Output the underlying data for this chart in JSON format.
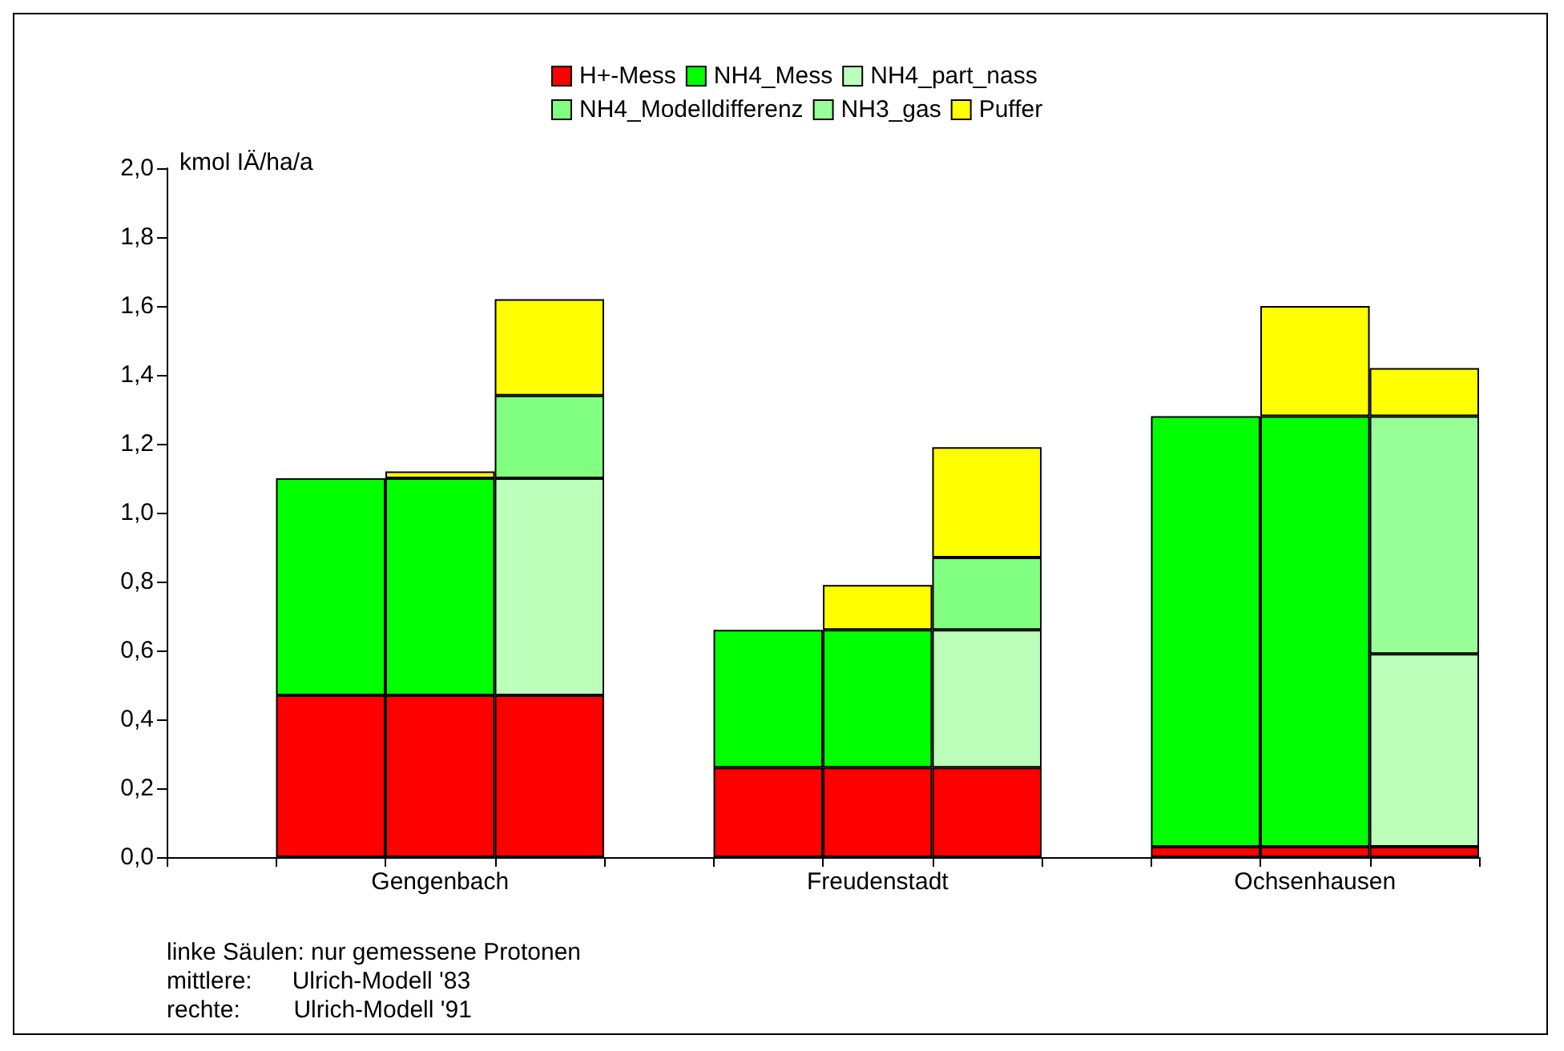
{
  "chart_data": {
    "type": "bar",
    "stacked": true,
    "ylabel": "kmol IÄ/ha/a",
    "categories": [
      null,
      null,
      "Gengenbach",
      null,
      null,
      null,
      "Freudenstadt",
      null,
      null,
      null,
      "Ochsenhausen",
      null
    ],
    "series": [
      {
        "name": "H+-Mess",
        "color": "#ff0000",
        "values": [
          null,
          0.47,
          0.47,
          0.47,
          null,
          0.26,
          0.26,
          0.26,
          null,
          0.03,
          0.03,
          0.03
        ]
      },
      {
        "name": "NH4_Mess",
        "color": "#00ff00",
        "values": [
          null,
          0.63,
          0.63,
          null,
          null,
          0.4,
          0.4,
          null,
          null,
          1.25,
          1.25,
          null
        ]
      },
      {
        "name": "NH4_part_nass",
        "color": "#bbffbb",
        "values": [
          null,
          null,
          null,
          0.63,
          null,
          null,
          null,
          0.4,
          null,
          null,
          null,
          0.56
        ]
      },
      {
        "name": "NH4_Modelldifferenz",
        "color": "#80ff80",
        "values": [
          null,
          null,
          null,
          0.24,
          null,
          null,
          null,
          0.21,
          null,
          null,
          null,
          null
        ]
      },
      {
        "name": "NH3_gas",
        "color": "#99ff99",
        "values": [
          null,
          null,
          null,
          null,
          null,
          null,
          null,
          null,
          null,
          null,
          null,
          0.69
        ]
      },
      {
        "name": "Puffer",
        "color": "#ffff00",
        "values": [
          null,
          null,
          0.02,
          0.28,
          null,
          null,
          0.13,
          0.32,
          null,
          null,
          0.32,
          0.14
        ]
      }
    ],
    "ylim": [
      0,
      2
    ],
    "yticks": [
      {
        "value": 0,
        "label": "0,0"
      },
      {
        "value": 0.2,
        "label": "0,2"
      },
      {
        "value": 0.4,
        "label": "0,4"
      },
      {
        "value": 0.6,
        "label": "0,6"
      },
      {
        "value": 0.8,
        "label": "0,8"
      },
      {
        "value": 1,
        "label": "1,0"
      },
      {
        "value": 1.2,
        "label": "1,2"
      },
      {
        "value": 1.4,
        "label": "1,4"
      },
      {
        "value": 1.6,
        "label": "1,6"
      },
      {
        "value": 1.8,
        "label": "1,8"
      },
      {
        "value": 2,
        "label": "2,0"
      }
    ],
    "grid": false,
    "legend": "top",
    "annotations": [
      "linke Säulen: nur gemessene Protonen",
      "mittlere:      Ulrich-Modell '83",
      "rechte:        Ulrich-Modell '91"
    ]
  }
}
